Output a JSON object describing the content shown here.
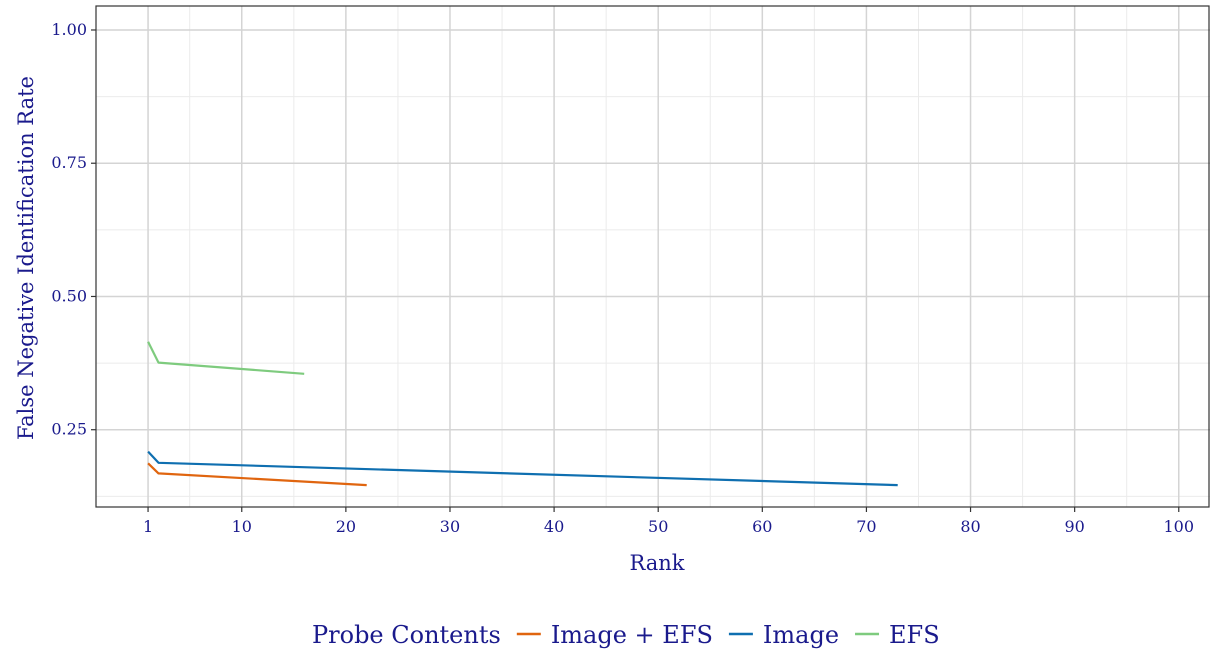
{
  "chart_data": {
    "type": "line",
    "xlabel": "Rank",
    "ylabel": "False Negative Identification Rate",
    "xlim": [
      -4,
      103
    ],
    "ylim": [
      0.105,
      1.045
    ],
    "x_ticks": [
      1,
      10,
      20,
      30,
      40,
      50,
      60,
      70,
      80,
      90,
      100
    ],
    "x_tick_labels": [
      "1",
      "10",
      "20",
      "30",
      "40",
      "50",
      "60",
      "70",
      "80",
      "90",
      "100"
    ],
    "x_minor_ticks": [
      5,
      15,
      25,
      35,
      45,
      55,
      65,
      75,
      85,
      95
    ],
    "y_ticks": [
      0.25,
      0.5,
      0.75,
      1.0
    ],
    "y_tick_labels": [
      "0.25",
      "0.50",
      "0.75",
      "1.00"
    ],
    "y_minor_ticks": [
      0.125,
      0.375,
      0.625,
      0.875
    ],
    "grid": true,
    "legend": {
      "title": "Probe Contents",
      "position": "bottom"
    },
    "series": [
      {
        "name": "Image + EFS",
        "color": "#e0650f",
        "x": [
          1,
          2,
          22
        ],
        "y": [
          0.187,
          0.168,
          0.146
        ]
      },
      {
        "name": "Image",
        "color": "#0f6fb0",
        "x": [
          1,
          2,
          73
        ],
        "y": [
          0.209,
          0.188,
          0.146
        ]
      },
      {
        "name": "EFS",
        "color": "#7ecb7e",
        "x": [
          1,
          2,
          16
        ],
        "y": [
          0.415,
          0.376,
          0.355
        ]
      }
    ]
  }
}
